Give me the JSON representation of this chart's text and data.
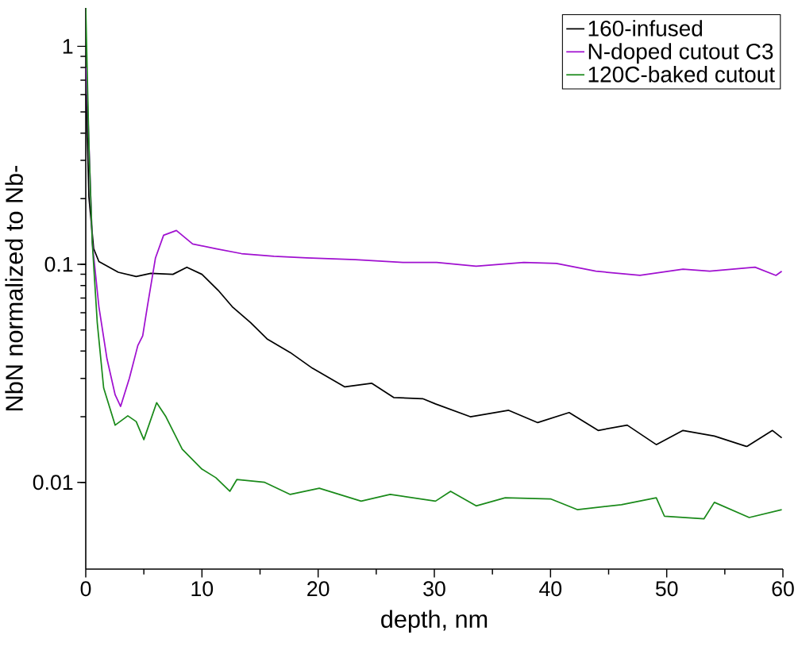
{
  "chart_data": {
    "type": "line",
    "xlabel": "depth, nm",
    "ylabel": "NbN normalized to Nb-",
    "log": "y",
    "legend": "top right",
    "xlim": [
      0,
      60
    ],
    "ylim": [
      0.004,
      1.5
    ],
    "xticks": [
      0,
      10,
      20,
      30,
      40,
      50,
      60
    ],
    "yticks": [
      0.01,
      0.1,
      1
    ],
    "series": [
      {
        "name": "160-infused",
        "color": "#000000",
        "x": [
          0.05,
          0.27,
          0.68,
          1.13,
          2.8,
          4.34,
          5.6,
          7.5,
          8.7,
          10.0,
          11.4,
          12.6,
          14.2,
          15.6,
          17.6,
          19.5,
          22.3,
          24.6,
          26.5,
          29.0,
          30.1,
          33.1,
          36.4,
          38.9,
          41.6,
          44.1,
          46.6,
          49.1,
          51.4,
          54.1,
          56.9,
          59.1,
          59.9
        ],
        "values": [
          0.6,
          0.204,
          0.118,
          0.103,
          0.092,
          0.088,
          0.091,
          0.09,
          0.097,
          0.09,
          0.076,
          0.064,
          0.054,
          0.0455,
          0.0394,
          0.0334,
          0.0274,
          0.0285,
          0.0245,
          0.0242,
          0.0229,
          0.02,
          0.0214,
          0.0188,
          0.0209,
          0.0173,
          0.0183,
          0.0149,
          0.0173,
          0.0163,
          0.0146,
          0.0173,
          0.016
        ]
      },
      {
        "name": "N-doped cutout C3",
        "color": "#a010d0",
        "x": [
          0.05,
          0.56,
          1.13,
          1.83,
          2.53,
          3.0,
          3.76,
          4.48,
          4.9,
          5.3,
          6.0,
          6.7,
          7.8,
          9.2,
          11.2,
          13.4,
          16.2,
          19.0,
          23.2,
          27.3,
          30.2,
          33.6,
          37.7,
          40.5,
          43.9,
          47.7,
          51.4,
          53.7,
          57.6,
          59.4,
          59.9
        ],
        "values": [
          0.8,
          0.126,
          0.064,
          0.0368,
          0.0252,
          0.0223,
          0.0301,
          0.0424,
          0.047,
          0.064,
          0.107,
          0.136,
          0.143,
          0.124,
          0.118,
          0.112,
          0.109,
          0.107,
          0.105,
          0.102,
          0.102,
          0.098,
          0.102,
          0.101,
          0.093,
          0.089,
          0.095,
          0.093,
          0.097,
          0.089,
          0.093
        ]
      },
      {
        "name": "120C-baked cutout",
        "color": "#1a8a1a",
        "x": [
          0.0,
          0.27,
          0.56,
          0.99,
          1.54,
          2.53,
          3.62,
          4.34,
          5.0,
          6.1,
          6.9,
          8.3,
          10.0,
          11.2,
          12.4,
          13.0,
          15.4,
          17.6,
          20.1,
          23.7,
          26.2,
          30.1,
          31.4,
          33.6,
          36.1,
          40.0,
          42.3,
          46.1,
          49.1,
          49.8,
          53.2,
          54.1,
          57.1,
          59.9
        ],
        "values": [
          1.5,
          0.355,
          0.126,
          0.054,
          0.0271,
          0.0183,
          0.0202,
          0.019,
          0.0157,
          0.0232,
          0.02,
          0.0142,
          0.0115,
          0.0105,
          0.0091,
          0.0103,
          0.01,
          0.0088,
          0.0094,
          0.0082,
          0.0088,
          0.0082,
          0.0091,
          0.0078,
          0.0085,
          0.0084,
          0.0075,
          0.0079,
          0.0085,
          0.007,
          0.0068,
          0.0081,
          0.0069,
          0.0075
        ]
      }
    ]
  }
}
